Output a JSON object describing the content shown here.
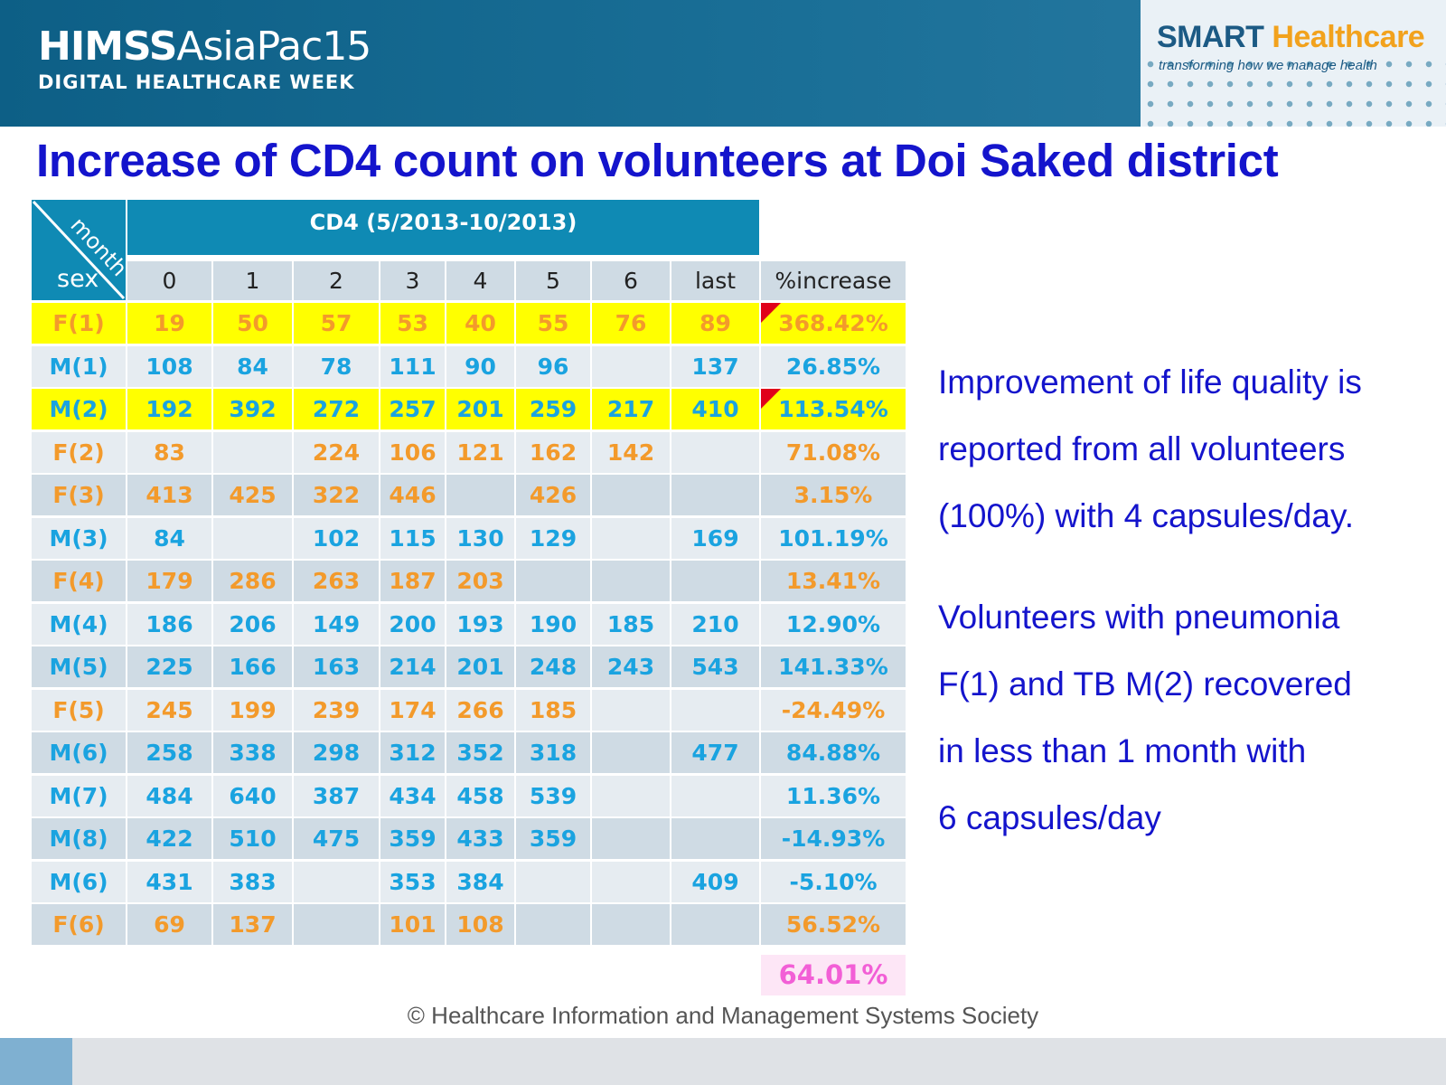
{
  "header": {
    "logo_main_bold": "HIMSS",
    "logo_main_light": "AsiaPac15",
    "logo_sub": "DIGITAL HEALTHCARE WEEK",
    "smart_word": "SMART",
    "healthcare_word": "Healthcare",
    "smart_tagline": "transforming how we manage health"
  },
  "title": "Increase of CD4 count on volunteers at Doi Saked district",
  "table": {
    "corner_top": "month",
    "corner_bottom": "sex",
    "group_header": "CD4 (5/2013-10/2013)",
    "columns": [
      "0",
      "1",
      "2",
      "3",
      "4",
      "5",
      "6",
      "last",
      "%increase"
    ],
    "rows": [
      {
        "label": "F(1)",
        "values": [
          "19",
          "50",
          "57",
          "53",
          "40",
          "55",
          "76",
          "89",
          "368.42%"
        ],
        "style": "yellow-orange",
        "flag": true
      },
      {
        "label": "M(1)",
        "values": [
          "108",
          "84",
          "78",
          "111",
          "90",
          "96",
          "",
          "137",
          "26.85%"
        ],
        "style": "blue"
      },
      {
        "label": "M(2)",
        "values": [
          "192",
          "392",
          "272",
          "257",
          "201",
          "259",
          "217",
          "410",
          "113.54%"
        ],
        "style": "yellow-blue",
        "flag": true
      },
      {
        "label": "F(2)",
        "values": [
          "83",
          "",
          "224",
          "106",
          "121",
          "162",
          "142",
          "",
          "71.08%"
        ],
        "style": "orange"
      },
      {
        "label": "F(3)",
        "values": [
          "413",
          "425",
          "322",
          "446",
          "",
          "426",
          "",
          "",
          "3.15%"
        ],
        "style": "orange"
      },
      {
        "label": "M(3)",
        "values": [
          "84",
          "",
          "102",
          "115",
          "130",
          "129",
          "",
          "169",
          "101.19%"
        ],
        "style": "blue"
      },
      {
        "label": "F(4)",
        "values": [
          "179",
          "286",
          "263",
          "187",
          "203",
          "",
          "",
          "",
          "13.41%"
        ],
        "style": "orange"
      },
      {
        "label": "M(4)",
        "values": [
          "186",
          "206",
          "149",
          "200",
          "193",
          "190",
          "185",
          "210",
          "12.90%"
        ],
        "style": "blue"
      },
      {
        "label": "M(5)",
        "values": [
          "225",
          "166",
          "163",
          "214",
          "201",
          "248",
          "243",
          "543",
          "141.33%"
        ],
        "style": "blue"
      },
      {
        "label": "F(5)",
        "values": [
          "245",
          "199",
          "239",
          "174",
          "266",
          "185",
          "",
          "",
          "-24.49%"
        ],
        "style": "orange"
      },
      {
        "label": "M(6)",
        "values": [
          "258",
          "338",
          "298",
          "312",
          "352",
          "318",
          "",
          "477",
          "84.88%"
        ],
        "style": "blue"
      },
      {
        "label": "M(7)",
        "values": [
          "484",
          "640",
          "387",
          "434",
          "458",
          "539",
          "",
          "",
          "11.36%"
        ],
        "style": "blue"
      },
      {
        "label": "M(8)",
        "values": [
          "422",
          "510",
          "475",
          "359",
          "433",
          "359",
          "",
          "",
          "-14.93%"
        ],
        "style": "blue"
      },
      {
        "label": "M(6)",
        "values": [
          "431",
          "383",
          "",
          "353",
          "384",
          "",
          "",
          "409",
          "-5.10%"
        ],
        "style": "blue"
      },
      {
        "label": "F(6)",
        "values": [
          "69",
          "137",
          "",
          "101",
          "108",
          "",
          "",
          "",
          "56.52%"
        ],
        "style": "orange"
      }
    ],
    "total": "64.01%"
  },
  "notes": {
    "para1": [
      "Improvement of life quality is",
      "reported from all volunteers",
      "(100%) with 4 capsules/day."
    ],
    "para2": [
      "Volunteers with pneumonia",
      "F(1) and TB M(2) recovered",
      "in less than 1 month with",
      "6 capsules/day"
    ]
  },
  "footer": {
    "copyright": "© Healthcare Information and Management Systems Society"
  },
  "colors": {
    "title_blue": "#1414cc",
    "header_teal": "#0f8ab4",
    "value_blue": "#1aa3e0",
    "value_orange": "#f39a2b",
    "highlight_yellow": "#ffff00",
    "total_pink": "#f25fd6"
  }
}
